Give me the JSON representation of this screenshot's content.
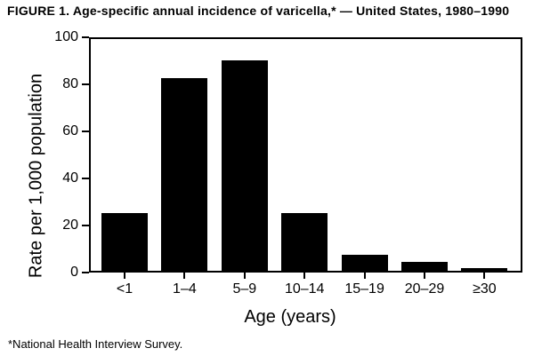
{
  "figure": {
    "title": "FIGURE 1. Age-specific annual incidence of varicella,* — United States, 1980–1990",
    "footnote": "*National Health Interview Survey."
  },
  "chart_data": {
    "type": "bar",
    "categories": [
      "<1",
      "1–4",
      "5–9",
      "10–14",
      "15–19",
      "20–29",
      "≥30"
    ],
    "values": [
      25,
      83,
      91,
      25,
      7,
      4,
      1
    ],
    "title": "FIGURE 1. Age-specific annual incidence of varicella,* — United States, 1980–1990",
    "xlabel": "Age (years)",
    "ylabel": "Rate per 1,000 population",
    "ylim": [
      0,
      100
    ],
    "yticks": [
      0,
      20,
      40,
      60,
      80,
      100
    ],
    "bar_color": "#000000",
    "background": "#ffffff",
    "grid": false,
    "legend": null
  }
}
